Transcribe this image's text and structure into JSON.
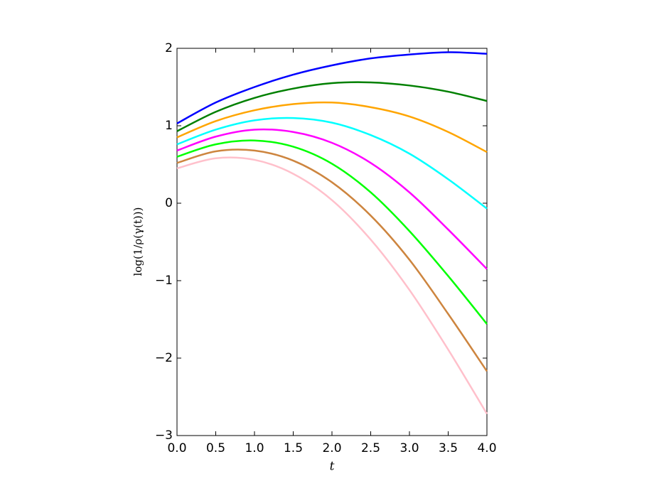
{
  "chart_data": {
    "type": "line",
    "x_label": "t",
    "y_label": "log(1/ρ(γ(t)))",
    "x": [
      0,
      0.5,
      1,
      1.5,
      2,
      2.5,
      3,
      3.5,
      4
    ],
    "series": [
      {
        "color": "#0000ff",
        "values": [
          1.03,
          1.3,
          1.5,
          1.66,
          1.78,
          1.87,
          1.92,
          1.95,
          1.93
        ]
      },
      {
        "color": "#008000",
        "values": [
          0.93,
          1.18,
          1.36,
          1.48,
          1.55,
          1.56,
          1.52,
          1.44,
          1.32
        ]
      },
      {
        "color": "#ffa500",
        "values": [
          0.85,
          1.06,
          1.2,
          1.28,
          1.3,
          1.24,
          1.12,
          0.92,
          0.66
        ]
      },
      {
        "color": "#00ffff",
        "values": [
          0.76,
          0.95,
          1.07,
          1.1,
          1.04,
          0.88,
          0.64,
          0.31,
          -0.07
        ]
      },
      {
        "color": "#ff00ff",
        "values": [
          0.68,
          0.86,
          0.95,
          0.92,
          0.78,
          0.52,
          0.14,
          -0.34,
          -0.85
        ]
      },
      {
        "color": "#00ff00",
        "values": [
          0.6,
          0.76,
          0.81,
          0.73,
          0.51,
          0.14,
          -0.36,
          -0.94,
          -1.56
        ]
      },
      {
        "color": "#cd853f",
        "values": [
          0.52,
          0.67,
          0.68,
          0.55,
          0.27,
          -0.16,
          -0.73,
          -1.43,
          -2.17
        ]
      },
      {
        "color": "#ffc0cb",
        "values": [
          0.45,
          0.58,
          0.56,
          0.38,
          0.04,
          -0.47,
          -1.12,
          -1.89,
          -2.72
        ]
      }
    ],
    "xlim": [
      0,
      4
    ],
    "ylim": [
      -3,
      2
    ],
    "xticks": [
      {
        "value": 0,
        "label": "0.0"
      },
      {
        "value": 0.5,
        "label": "0.5"
      },
      {
        "value": 1,
        "label": "1.0"
      },
      {
        "value": 1.5,
        "label": "1.5"
      },
      {
        "value": 2,
        "label": "2.0"
      },
      {
        "value": 2.5,
        "label": "2.5"
      },
      {
        "value": 3,
        "label": "3.0"
      },
      {
        "value": 3.5,
        "label": "3.5"
      },
      {
        "value": 4,
        "label": "4.0"
      }
    ],
    "yticks": [
      {
        "value": -3,
        "label": "−3"
      },
      {
        "value": -2,
        "label": "−2"
      },
      {
        "value": -1,
        "label": "−1"
      },
      0,
      1,
      2
    ],
    "grid": false
  }
}
